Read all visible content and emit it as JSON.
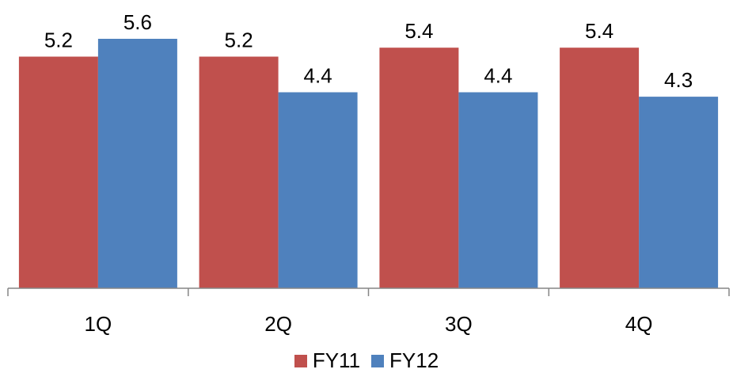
{
  "chart_data": {
    "type": "bar",
    "categories": [
      "1Q",
      "2Q",
      "3Q",
      "4Q"
    ],
    "series": [
      {
        "name": "FY11",
        "values": [
          5.2,
          5.2,
          5.4,
          5.4
        ],
        "color": "#C0504D"
      },
      {
        "name": "FY12",
        "values": [
          5.6,
          4.4,
          4.4,
          4.3
        ],
        "color": "#4F81BD"
      }
    ],
    "ylim": [
      0,
      6.0
    ],
    "data_labels": true,
    "grid": false,
    "legend_position": "bottom"
  }
}
